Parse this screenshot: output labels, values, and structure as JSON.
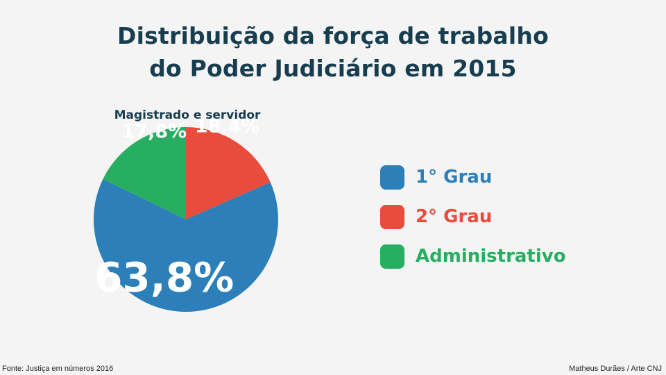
{
  "title": {
    "line1": "Distribuição da força de trabalho",
    "line2": "do Poder Judiciário em 2015"
  },
  "chart_data": {
    "type": "pie",
    "subtitle": "Magistrado e servidor",
    "slices": [
      {
        "name": "1° Grau",
        "value": 63.8,
        "label": "63,8%",
        "color": "#2c7fb8"
      },
      {
        "name": "2° Grau",
        "value": 18.4,
        "label": "18,4%",
        "color": "#e74c3c"
      },
      {
        "name": "Administrativo",
        "value": 17.8,
        "label": "17,8%",
        "color": "#27ae60"
      }
    ],
    "legend_position": "right"
  },
  "footer": {
    "source": "Fonte: Justiça em números 2016",
    "credit": "Matheus Durães / Arte CNJ"
  }
}
